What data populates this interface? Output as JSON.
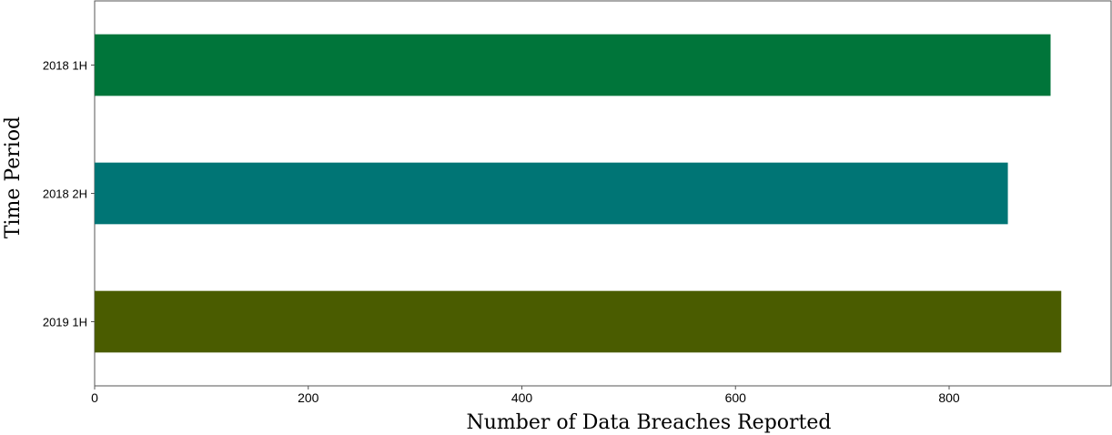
{
  "chart_data": {
    "type": "bar",
    "orientation": "horizontal",
    "categories": [
      "2018 1H",
      "2018 2H",
      "2019 1H"
    ],
    "values": [
      895,
      855,
      905
    ],
    "colors": [
      "#00753a",
      "#007575",
      "#4a5c00"
    ],
    "xlabel": "Number of Data Breaches Reported",
    "ylabel": "Time Period",
    "xlim": [
      0,
      950
    ],
    "xticks": [
      0,
      200,
      400,
      600,
      800
    ],
    "grid": false,
    "legend": "none"
  }
}
